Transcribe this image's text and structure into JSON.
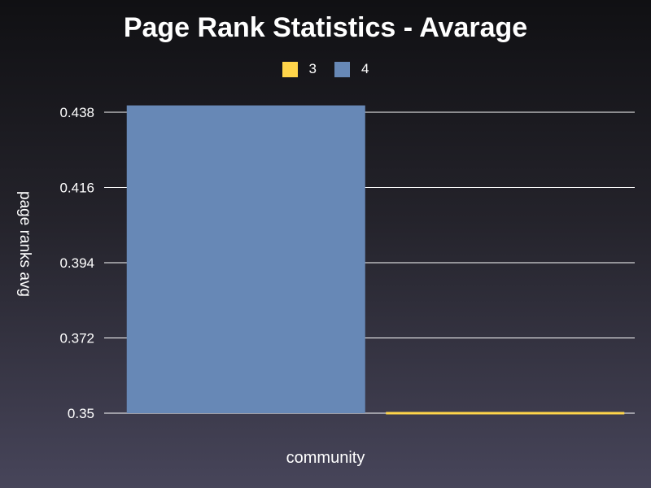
{
  "chart_data": {
    "type": "bar",
    "title": "Page Rank Statistics - Avarage",
    "xlabel": "community",
    "ylabel": "page ranks avg",
    "ylim": [
      0.35,
      0.438
    ],
    "yticks": [
      "0.35",
      "0.372",
      "0.394",
      "0.416",
      "0.438"
    ],
    "grid": true,
    "legend_position": "top",
    "series": [
      {
        "name": "3",
        "value": 0.3502,
        "color": "#ffd54a"
      },
      {
        "name": "4",
        "value": 0.44,
        "color": "#6788b6"
      }
    ],
    "bar_order": [
      "4",
      "3"
    ]
  }
}
